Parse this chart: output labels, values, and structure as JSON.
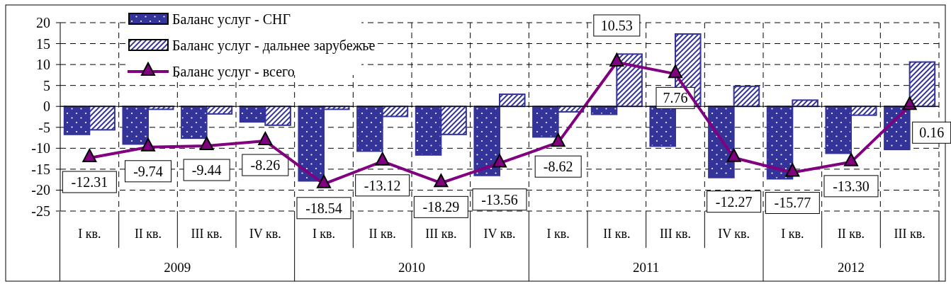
{
  "chart_data": {
    "type": "bar",
    "categories": [
      "I кв.",
      "II кв.",
      "III кв.",
      "IV кв.",
      "I кв.",
      "II кв.",
      "III кв.",
      "IV кв.",
      "I кв.",
      "II кв.",
      "III кв.",
      "IV кв.",
      "I кв.",
      "II кв.",
      "III кв."
    ],
    "annotations": [
      "2009",
      "2010",
      "2011",
      "2012"
    ],
    "series": [
      {
        "name": "Баланс услуг - СНГ",
        "color": "#333399",
        "values": [
          -6.7,
          -9.0,
          -7.6,
          -3.7,
          -17.8,
          -10.7,
          -11.6,
          -16.5,
          -7.3,
          -1.9,
          -9.5,
          -17.0,
          -17.3,
          -11.2,
          -10.3
        ]
      },
      {
        "name": "Баланс услуг - дальнее зарубежье",
        "color": "#333399",
        "values": [
          -5.6,
          -0.7,
          -1.8,
          -4.5,
          -0.7,
          -2.4,
          -6.7,
          2.9,
          -1.3,
          12.5,
          17.3,
          4.8,
          1.5,
          -2.1,
          10.6
        ]
      },
      {
        "name": "Баланс услуг - всего",
        "type": "line",
        "color": "#800080",
        "marker": "triangle",
        "value_labels": [
          "-12.31",
          "-9.74",
          "-9.44",
          "-8.26",
          "-18.54",
          "-13.12",
          "-18.29",
          "-13.56",
          "-8.62",
          "10.53",
          "7.76",
          "-12.27",
          "-15.77",
          "-13.30",
          "0.16"
        ],
        "values": [
          -12.31,
          -9.74,
          -9.44,
          -8.26,
          -18.54,
          -13.12,
          -18.29,
          -13.56,
          -8.62,
          10.53,
          7.76,
          -12.27,
          -15.77,
          -13.3,
          0.16
        ]
      }
    ],
    "ylim": [
      -25,
      20
    ],
    "yticks": [
      -25,
      -20,
      -15,
      -10,
      -5,
      0,
      5,
      10,
      15,
      20
    ],
    "grid": true,
    "legend": "top left"
  }
}
